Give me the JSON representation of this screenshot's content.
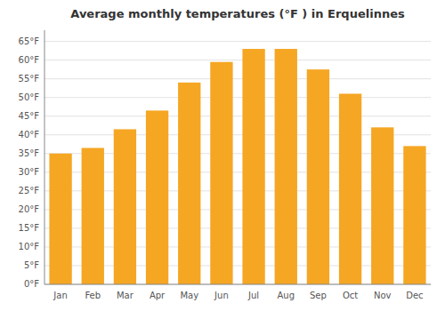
{
  "chart_data": {
    "type": "bar",
    "title": "Average monthly temperatures (°F ) in Erquelinnes",
    "categories": [
      "Jan",
      "Feb",
      "Mar",
      "Apr",
      "May",
      "Jun",
      "Jul",
      "Aug",
      "Sep",
      "Oct",
      "Nov",
      "Dec"
    ],
    "values": [
      35,
      36.5,
      41.5,
      46.5,
      54,
      59.5,
      63,
      63,
      57.5,
      51,
      42,
      37
    ],
    "color": "#F5A623",
    "ylim": [
      0,
      68
    ],
    "yticks": [
      {
        "value": 0,
        "label": "0°F"
      },
      {
        "value": 5,
        "label": "5°F"
      },
      {
        "value": 10,
        "label": "10°F"
      },
      {
        "value": 15,
        "label": "15°F"
      },
      {
        "value": 20,
        "label": "20°F"
      },
      {
        "value": 25,
        "label": "25°F"
      },
      {
        "value": 30,
        "label": "30°F"
      },
      {
        "value": 35,
        "label": "35°F"
      },
      {
        "value": 40,
        "label": "40°F"
      },
      {
        "value": 45,
        "label": "45°F"
      },
      {
        "value": 50,
        "label": "50°F"
      },
      {
        "value": 55,
        "label": "55°F"
      },
      {
        "value": 60,
        "label": "60°F"
      },
      {
        "value": 65,
        "label": "65°F"
      }
    ],
    "grid": true
  }
}
